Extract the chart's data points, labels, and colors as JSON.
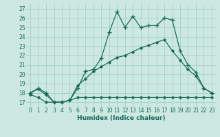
{
  "xlabel": "Humidex (Indice chaleur)",
  "background_color": "#cce8e0",
  "grid_color": "#a8d4cc",
  "line_color": "#1a6b5a",
  "xlim": [
    -0.5,
    23.5
  ],
  "ylim": [
    16.5,
    27.5
  ],
  "yticks": [
    17,
    18,
    19,
    20,
    21,
    22,
    23,
    24,
    25,
    26,
    27
  ],
  "xticks": [
    0,
    1,
    2,
    3,
    4,
    5,
    6,
    7,
    8,
    9,
    10,
    11,
    12,
    13,
    14,
    15,
    16,
    17,
    18,
    19,
    20,
    21,
    22,
    23
  ],
  "series1_x": [
    0,
    1,
    2,
    3,
    4,
    5,
    6,
    7,
    8,
    9,
    10,
    11,
    12,
    13,
    14,
    15,
    16,
    17,
    18,
    19,
    20,
    21,
    22,
    23
  ],
  "series1_y": [
    18.0,
    18.5,
    18.0,
    17.0,
    17.0,
    17.2,
    18.5,
    20.3,
    20.5,
    21.7,
    24.5,
    26.7,
    25.0,
    26.2,
    25.0,
    25.2,
    25.2,
    26.0,
    25.8,
    22.5,
    21.0,
    20.2,
    18.5,
    18.0
  ],
  "series2_x": [
    0,
    1,
    2,
    3,
    4,
    5,
    6,
    7,
    8,
    9,
    10,
    11,
    12,
    13,
    14,
    15,
    16,
    17,
    18,
    19,
    20,
    21,
    22,
    23
  ],
  "series2_y": [
    18.0,
    18.4,
    17.8,
    17.0,
    17.0,
    17.2,
    18.8,
    19.5,
    20.3,
    20.8,
    21.3,
    21.8,
    22.0,
    22.4,
    22.8,
    23.1,
    23.4,
    23.7,
    22.5,
    21.5,
    20.5,
    19.8,
    18.5,
    18.0
  ],
  "series3_x": [
    0,
    1,
    2,
    3,
    4,
    5,
    6,
    7,
    8,
    9,
    10,
    11,
    12,
    13,
    14,
    15,
    16,
    17,
    18,
    19,
    20,
    21,
    22,
    23
  ],
  "series3_y": [
    17.8,
    17.5,
    17.0,
    17.0,
    17.0,
    17.2,
    17.5,
    17.5,
    17.5,
    17.5,
    17.5,
    17.5,
    17.5,
    17.5,
    17.5,
    17.5,
    17.5,
    17.5,
    17.5,
    17.5,
    17.5,
    17.5,
    17.5,
    17.5
  ]
}
